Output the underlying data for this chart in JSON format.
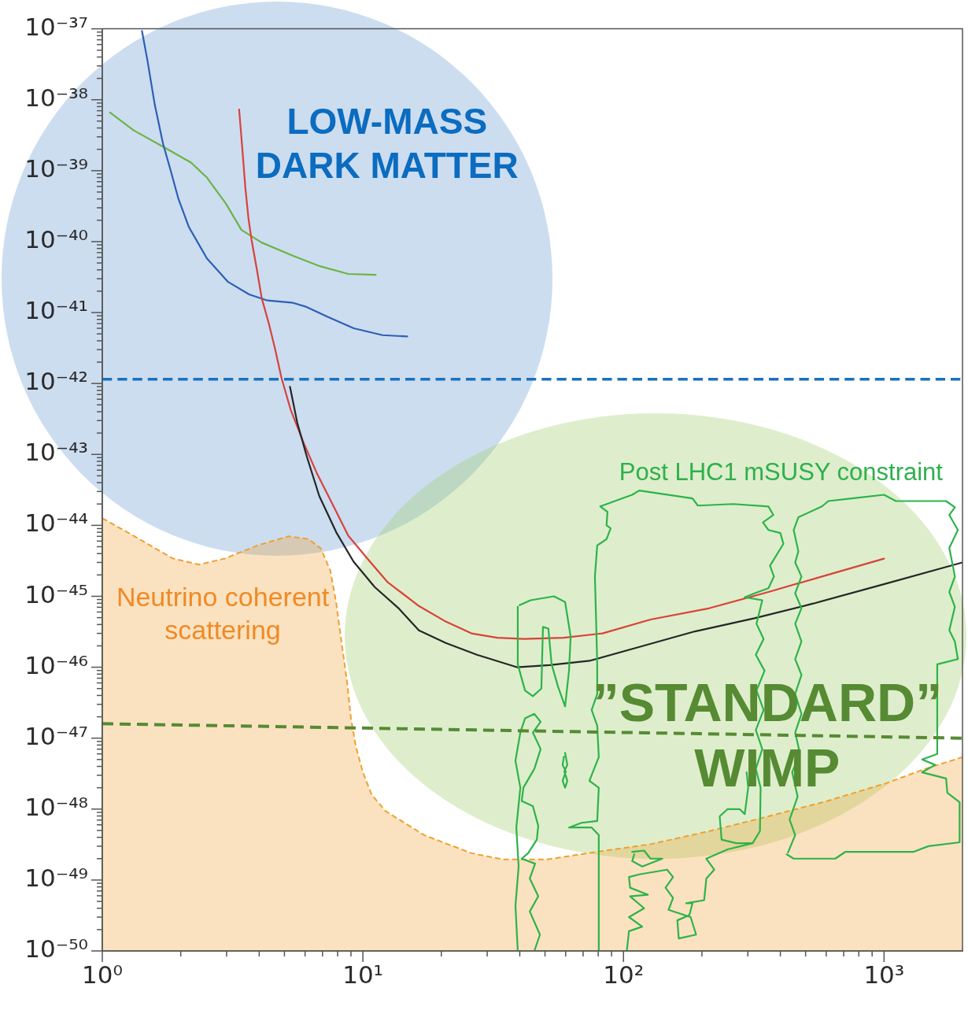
{
  "chart_data": {
    "type": "line",
    "log": "xy",
    "xlim": [
      1,
      2000
    ],
    "ylim": [
      1e-50,
      1e-37
    ],
    "xticks": [
      {
        "value": 1,
        "label": "10⁰"
      },
      {
        "value": 2,
        "label": null
      },
      {
        "value": 3,
        "label": null
      },
      {
        "value": 4,
        "label": null
      },
      {
        "value": 5,
        "label": null
      },
      {
        "value": 6,
        "label": null
      },
      {
        "value": 7,
        "label": null
      },
      {
        "value": 8,
        "label": null
      },
      {
        "value": 9,
        "label": null
      },
      {
        "value": 10,
        "label": "10¹"
      },
      {
        "value": 20,
        "label": null
      },
      {
        "value": 30,
        "label": null
      },
      {
        "value": 40,
        "label": null
      },
      {
        "value": 50,
        "label": null
      },
      {
        "value": 60,
        "label": null
      },
      {
        "value": 70,
        "label": null
      },
      {
        "value": 80,
        "label": null
      },
      {
        "value": 90,
        "label": null
      },
      {
        "value": 100,
        "label": "10²"
      },
      {
        "value": 200,
        "label": null
      },
      {
        "value": 300,
        "label": null
      },
      {
        "value": 400,
        "label": null
      },
      {
        "value": 500,
        "label": null
      },
      {
        "value": 600,
        "label": null
      },
      {
        "value": 700,
        "label": null
      },
      {
        "value": 800,
        "label": null
      },
      {
        "value": 900,
        "label": null
      },
      {
        "value": 1000,
        "label": "10³"
      }
    ],
    "yticks": [
      {
        "value": 1e-50,
        "label": "10⁻⁵⁰"
      },
      {
        "value": 2e-50,
        "label": null
      },
      {
        "value": 3e-50,
        "label": null
      },
      {
        "value": 4e-50,
        "label": null
      },
      {
        "value": 5e-50,
        "label": null
      },
      {
        "value": 6e-50,
        "label": null
      },
      {
        "value": 7e-50,
        "label": null
      },
      {
        "value": 8e-50,
        "label": null
      },
      {
        "value": 9e-50,
        "label": null
      },
      {
        "value": 1e-49,
        "label": "10⁻⁴⁹"
      },
      {
        "value": 2e-49,
        "label": null
      },
      {
        "value": 3e-49,
        "label": null
      },
      {
        "value": 4e-49,
        "label": null
      },
      {
        "value": 5e-49,
        "label": null
      },
      {
        "value": 6e-49,
        "label": null
      },
      {
        "value": 7e-49,
        "label": null
      },
      {
        "value": 8e-49,
        "label": null
      },
      {
        "value": 9e-49,
        "label": null
      },
      {
        "value": 1e-48,
        "label": "10⁻⁴⁸"
      },
      {
        "value": 2e-48,
        "label": null
      },
      {
        "value": 3e-48,
        "label": null
      },
      {
        "value": 4e-48,
        "label": null
      },
      {
        "value": 5e-48,
        "label": null
      },
      {
        "value": 6e-48,
        "label": null
      },
      {
        "value": 7e-48,
        "label": null
      },
      {
        "value": 8e-48,
        "label": null
      },
      {
        "value": 9e-48,
        "label": null
      },
      {
        "value": 1e-47,
        "label": "10⁻⁴⁷"
      },
      {
        "value": 2e-47,
        "label": null
      },
      {
        "value": 3e-47,
        "label": null
      },
      {
        "value": 4e-47,
        "label": null
      },
      {
        "value": 5e-47,
        "label": null
      },
      {
        "value": 6e-47,
        "label": null
      },
      {
        "value": 7e-47,
        "label": null
      },
      {
        "value": 8e-47,
        "label": null
      },
      {
        "value": 9e-47,
        "label": null
      },
      {
        "value": 1e-46,
        "label": "10⁻⁴⁶"
      },
      {
        "value": 2e-46,
        "label": null
      },
      {
        "value": 3e-46,
        "label": null
      },
      {
        "value": 4e-46,
        "label": null
      },
      {
        "value": 5e-46,
        "label": null
      },
      {
        "value": 6e-46,
        "label": null
      },
      {
        "value": 7e-46,
        "label": null
      },
      {
        "value": 8e-46,
        "label": null
      },
      {
        "value": 9e-46,
        "label": null
      },
      {
        "value": 1e-45,
        "label": "10⁻⁴⁵"
      },
      {
        "value": 2e-45,
        "label": null
      },
      {
        "value": 3e-45,
        "label": null
      },
      {
        "value": 4e-45,
        "label": null
      },
      {
        "value": 5e-45,
        "label": null
      },
      {
        "value": 6e-45,
        "label": null
      },
      {
        "value": 7e-45,
        "label": null
      },
      {
        "value": 8e-45,
        "label": null
      },
      {
        "value": 9e-45,
        "label": null
      },
      {
        "value": 1e-44,
        "label": "10⁻⁴⁴"
      },
      {
        "value": 2e-44,
        "label": null
      },
      {
        "value": 3e-44,
        "label": null
      },
      {
        "value": 4e-44,
        "label": null
      },
      {
        "value": 5e-44,
        "label": null
      },
      {
        "value": 6e-44,
        "label": null
      },
      {
        "value": 7e-44,
        "label": null
      },
      {
        "value": 8e-44,
        "label": null
      },
      {
        "value": 9e-44,
        "label": null
      },
      {
        "value": 1e-43,
        "label": "10⁻⁴³"
      },
      {
        "value": 2e-43,
        "label": null
      },
      {
        "value": 3e-43,
        "label": null
      },
      {
        "value": 4e-43,
        "label": null
      },
      {
        "value": 5e-43,
        "label": null
      },
      {
        "value": 6e-43,
        "label": null
      },
      {
        "value": 7e-43,
        "label": null
      },
      {
        "value": 8e-43,
        "label": null
      },
      {
        "value": 9e-43,
        "label": null
      },
      {
        "value": 1e-42,
        "label": "10⁻⁴²"
      },
      {
        "value": 2e-42,
        "label": null
      },
      {
        "value": 3e-42,
        "label": null
      },
      {
        "value": 4e-42,
        "label": null
      },
      {
        "value": 5e-42,
        "label": null
      },
      {
        "value": 6e-42,
        "label": null
      },
      {
        "value": 7e-42,
        "label": null
      },
      {
        "value": 8e-42,
        "label": null
      },
      {
        "value": 9e-42,
        "label": null
      },
      {
        "value": 1e-41,
        "label": "10⁻⁴¹"
      },
      {
        "value": 2e-41,
        "label": null
      },
      {
        "value": 3e-41,
        "label": null
      },
      {
        "value": 4e-41,
        "label": null
      },
      {
        "value": 5e-41,
        "label": null
      },
      {
        "value": 6e-41,
        "label": null
      },
      {
        "value": 7e-41,
        "label": null
      },
      {
        "value": 8e-41,
        "label": null
      },
      {
        "value": 9e-41,
        "label": null
      },
      {
        "value": 1e-40,
        "label": "10⁻⁴⁰"
      },
      {
        "value": 2e-40,
        "label": null
      },
      {
        "value": 3e-40,
        "label": null
      },
      {
        "value": 4e-40,
        "label": null
      },
      {
        "value": 5e-40,
        "label": null
      },
      {
        "value": 6e-40,
        "label": null
      },
      {
        "value": 7e-40,
        "label": null
      },
      {
        "value": 8e-40,
        "label": null
      },
      {
        "value": 9e-40,
        "label": null
      },
      {
        "value": 1e-39,
        "label": "10⁻³⁹"
      },
      {
        "value": 2e-39,
        "label": null
      },
      {
        "value": 3e-39,
        "label": null
      },
      {
        "value": 4e-39,
        "label": null
      },
      {
        "value": 5e-39,
        "label": null
      },
      {
        "value": 6e-39,
        "label": null
      },
      {
        "value": 7e-39,
        "label": null
      },
      {
        "value": 8e-39,
        "label": null
      },
      {
        "value": 9e-39,
        "label": null
      },
      {
        "value": 1e-38,
        "label": "10⁻³⁸"
      },
      {
        "value": 2e-38,
        "label": null
      },
      {
        "value": 3e-38,
        "label": null
      },
      {
        "value": 4e-38,
        "label": null
      },
      {
        "value": 5e-38,
        "label": null
      },
      {
        "value": 6e-38,
        "label": null
      },
      {
        "value": 7e-38,
        "label": null
      },
      {
        "value": 8e-38,
        "label": null
      },
      {
        "value": 9e-38,
        "label": null
      },
      {
        "value": 1e-37,
        "label": "10⁻³⁷"
      }
    ],
    "series": [
      {
        "type": "area",
        "color": "#f0a030",
        "line_style": "dashed",
        "x": [
          1,
          1.33,
          1.87,
          2.35,
          2.95,
          3.93,
          5.18,
          6.2,
          6.9,
          7.5,
          7.9,
          8.2,
          8.7,
          9.0,
          9.4,
          10,
          10.8,
          12.2,
          17.2,
          26,
          34.5,
          51,
          79,
          127,
          214,
          360,
          606,
          1030,
          1440,
          2000
        ],
        "values": [
          1.26e-44,
          7e-45,
          3.4e-45,
          2.8e-45,
          3.4e-45,
          5.2e-45,
          7e-45,
          6.4e-45,
          4.7e-45,
          2.3e-45,
          8.1e-46,
          2.9e-46,
          6.1e-47,
          1.9e-47,
          7.6e-48,
          3.3e-48,
          1.6e-48,
          9.4e-49,
          4.3e-49,
          2.4e-49,
          1.95e-49,
          1.95e-49,
          2.5e-49,
          3.2e-49,
          4.9e-49,
          7.9e-49,
          1.3e-48,
          2.35e-48,
          3.7e-48,
          5.4e-48
        ]
      },
      {
        "color": "#6cb444",
        "x": [
          1.07,
          1.32,
          1.74,
          2.19,
          2.52,
          2.97,
          3.42,
          4.09,
          5.4,
          6.84,
          8.79,
          11.2
        ],
        "values": [
          6.6e-39,
          3.7e-39,
          2.1e-39,
          1.3e-39,
          8e-40,
          3.5e-40,
          1.46e-40,
          9.7e-41,
          6.3e-41,
          4.5e-41,
          3.5e-41,
          3.4e-41
        ]
      },
      {
        "color": "#2d5fb4",
        "x": [
          1.42,
          1.49,
          1.59,
          1.71,
          1.83,
          1.96,
          2.15,
          2.52,
          3.04,
          3.66,
          4.3,
          5.4,
          6.08,
          7.33,
          9.22,
          11.9,
          14.8
        ],
        "values": [
          9.3e-38,
          3.6e-38,
          8.5e-39,
          2.4e-39,
          1e-39,
          4e-40,
          1.6e-40,
          5.8e-41,
          2.7e-41,
          1.8e-41,
          1.48e-41,
          1.37e-41,
          1.2e-41,
          8.7e-42,
          6e-42,
          4.8e-42,
          4.6e-42
        ]
      },
      {
        "color": "#d9423a",
        "x": [
          3.35,
          3.44,
          3.54,
          3.64,
          3.74,
          3.93,
          4.09,
          4.36,
          4.61,
          4.87,
          5.29,
          5.95,
          6.65,
          7.64,
          8.78,
          10.4,
          12.4,
          16.4,
          20.8,
          26.1,
          32.8,
          41.6,
          58.9,
          83,
          127,
          214,
          360,
          606,
          1000
        ],
        "values": [
          7.3e-39,
          2.2e-39,
          5.7e-40,
          2.1e-40,
          1.05e-40,
          3.8e-41,
          1.6e-41,
          6.9e-42,
          3e-42,
          1.2e-42,
          4.2e-43,
          1.4e-43,
          5.5e-44,
          2e-44,
          7.2e-45,
          3.4e-45,
          1.6e-45,
          7.3e-46,
          4.4e-46,
          3e-46,
          2.6e-46,
          2.5e-46,
          2.6e-46,
          3e-46,
          4.7e-46,
          6.8e-46,
          1.15e-45,
          2e-45,
          3.4e-45
        ]
      },
      {
        "color": "#262626",
        "x": [
          5.25,
          5.6,
          6.1,
          6.8,
          7.9,
          9.2,
          11.1,
          13.7,
          16.4,
          20.8,
          27.4,
          39,
          52,
          74,
          111,
          188,
          318,
          535,
          1030,
          2000
        ],
        "values": [
          9e-43,
          2.8e-43,
          9.2e-44,
          2.6e-44,
          8e-45,
          3.1e-45,
          1.35e-45,
          6.8e-46,
          3.3e-46,
          2.2e-46,
          1.5e-46,
          1e-46,
          1.07e-46,
          1.23e-46,
          1.86e-46,
          3.2e-46,
          4.9e-46,
          7.9e-46,
          1.53e-45,
          3e-45
        ]
      },
      {
        "color": "#2db34a",
        "x": [
          39.3,
          39.3,
          41.9,
          44.9,
          48.4,
          49.1,
          51.5,
          53.0,
          56.1,
          59.7,
          61.8,
          62.7,
          59.7,
          54.1,
          49.8,
          44.0,
          39.9,
          null,
          39.3,
          38.5,
          39.6,
          38.8,
          40.2,
          38.5,
          40.2,
          41.9,
          45.5,
          48.1,
          44.9,
          48.1,
          45.5,
          41.3,
          40.7,
          44.9,
          47.1,
          46.5,
          43.1,
          40.7,
          45.8,
          43.7,
          47.1,
          43.7,
          47.8,
          45.5,
          null,
          59.7,
          60.9,
          59.3,
          60.9,
          59.7,
          58.4,
          60.1,
          58.4,
          59.1,
          null,
          80.4,
          80.4,
          75.5,
          61.8,
          69.0,
          79.3,
          80.4,
          74.0,
          80.4,
          79.3,
          75.5,
          79.3,
          79.3,
          77.7,
          79.3,
          86.1,
          89.3,
          86.1,
          86.8,
          81.5,
          108,
          115,
          184,
          193,
          264,
          360,
          376,
          343,
          360,
          400,
          411,
          365,
          378,
          360,
          318,
          292,
          341,
          324,
          345,
          322,
          348,
          324,
          345,
          322,
          341,
          322,
          336,
          334,
          313,
          271,
          238,
          234,
          251,
          279,
          292,
          301,
          297,
          null,
          423,
          450,
          650,
          711,
          1300,
          1480,
          1950,
          1950,
          1750,
          1730,
          1400,
          1570,
          1400,
          1600,
          1600,
          1920,
          1870,
          1780,
          1870,
          1780,
          1870,
          1780,
          1920,
          1780,
          1870,
          1730,
          1110,
          1000,
          752,
          611,
          578,
          469,
          450,
          469,
          456,
          482,
          456,
          482,
          456,
          482,
          456,
          482,
          456,
          482,
          456,
          475,
          444,
          466,
          434,
          456,
          428,
          null,
          108,
          120,
          127,
          141,
          118,
          108,
          110,
          null,
          103,
          105,
          118,
          105,
          120,
          106,
          124,
          106,
          105,
          115,
          147,
          155,
          145,
          155,
          149,
          181,
          190,
          163,
          161,
          179,
          184,
          174,
          204,
          208,
          223,
          208,
          251,
          313
        ],
        "values": [
          7.1e-46,
          1.1e-46,
          4.7e-47,
          3.9e-47,
          5e-47,
          3.7e-46,
          3.5e-46,
          1.1e-46,
          5.3e-47,
          2.8e-47,
          8.9e-47,
          2.7e-46,
          8.3e-46,
          1e-45,
          9.5e-46,
          8.8e-46,
          7.5e-46,
          null,
          1e-50,
          4.3e-50,
          1.55e-49,
          5.5e-49,
          2e-48,
          4.8e-48,
          1.2e-47,
          1.9e-47,
          2.2e-47,
          1.7e-47,
          1.2e-47,
          7e-48,
          3.7e-48,
          2e-48,
          1.3e-48,
          1.1e-48,
          5.8e-49,
          3.7e-49,
          2.4e-49,
          2e-49,
          1.7e-49,
          1.05e-49,
          5.9e-50,
          3.6e-50,
          1.7e-50,
          1e-50,
          null,
          6.2e-48,
          4.2e-48,
          3.4e-48,
          2.5e-48,
          2e-48,
          2.5e-48,
          3.4e-48,
          4.2e-48,
          5.5e-48,
          null,
          1e-50,
          4.3e-49,
          5.5e-49,
          5.5e-49,
          6.4e-49,
          6.8e-49,
          2e-48,
          2.5e-48,
          5.4e-48,
          1.5e-47,
          2.5e-47,
          4.2e-47,
          1.15e-46,
          1.9e-45,
          5.2e-45,
          6.4e-45,
          9.1e-45,
          1e-44,
          1.55e-44,
          1.85e-44,
          2.7e-44,
          3.1e-44,
          2.4e-44,
          1.9e-44,
          2e-44,
          1.85e-44,
          1.4e-44,
          1.1e-44,
          8.6e-45,
          7.8e-45,
          5.5e-45,
          2.7e-45,
          1.9e-45,
          1.3e-45,
          1.1e-45,
          9.7e-46,
          8.8e-46,
          4.1e-46,
          2.5e-46,
          1.5e-46,
          8.9e-47,
          4.7e-47,
          2.5e-47,
          1.3e-47,
          7e-48,
          3.7e-48,
          2e-48,
          4.9e-49,
          3.3e-49,
          3.3e-49,
          3.7e-49,
          7.9e-49,
          1e-48,
          1e-48,
          8.5e-49,
          2e-48,
          3.3e-48,
          null,
          2.3e-49,
          2e-49,
          2e-49,
          2.5e-49,
          2.5e-49,
          3e-49,
          3.4e-49,
          1.25e-48,
          1.7e-48,
          2.7e-48,
          3.3e-48,
          4.2e-48,
          5e-48,
          6e-48,
          1.1e-46,
          1.3e-46,
          2.3e-46,
          3.3e-46,
          7.1e-46,
          1.15e-45,
          1.9e-45,
          4.8e-45,
          8.6e-45,
          1.4e-44,
          1.8e-44,
          2.2e-44,
          2.2e-44,
          2.7e-44,
          2.4e-44,
          2.2e-44,
          1.85e-44,
          1.3e-44,
          8.6e-45,
          4.3e-45,
          3e-45,
          1.9e-45,
          1.1e-45,
          6.8e-46,
          4.1e-46,
          2.3e-46,
          1.3e-46,
          7.8e-47,
          4.2e-47,
          2.2e-47,
          1.2e-47,
          6.2e-48,
          3.3e-48,
          1.5e-48,
          7.1e-49,
          4.3e-49,
          2.45e-49,
          null,
          2.5e-49,
          2.6e-49,
          2e-49,
          2e-49,
          1.55e-49,
          1.85e-49,
          2.3e-49,
          null,
          1e-50,
          1.9e-50,
          2.2e-50,
          3e-50,
          4e-50,
          5.9e-50,
          6.2e-50,
          7.8e-50,
          1.1e-49,
          1.2e-49,
          1.4e-49,
          1.1e-49,
          7.8e-50,
          5.6e-50,
          3.8e-50,
          3e-50,
          1.7e-50,
          1.5e-50,
          2.7e-50,
          3.2e-50,
          4.7e-50,
          4.7e-50,
          5.2e-50,
          1.05e-49,
          1.4e-49,
          2e-49,
          2.7e-49,
          3.3e-49
        ]
      },
      {
        "color": "#568a33",
        "line_style": "dashed",
        "x": [
          1,
          2000
        ],
        "values": [
          1.6e-47,
          1e-47
        ]
      }
    ],
    "ref_lines": [
      {
        "axis": "y",
        "value": 1.15e-42,
        "color": "#1a70c0",
        "line_style": "dashed"
      }
    ],
    "annotations": [
      "LOW-MASS DARK MATTER",
      "Post LHC1 mSUSY constraint",
      "Neutrino coherent scattering",
      "”STANDARD” WIMP"
    ]
  }
}
